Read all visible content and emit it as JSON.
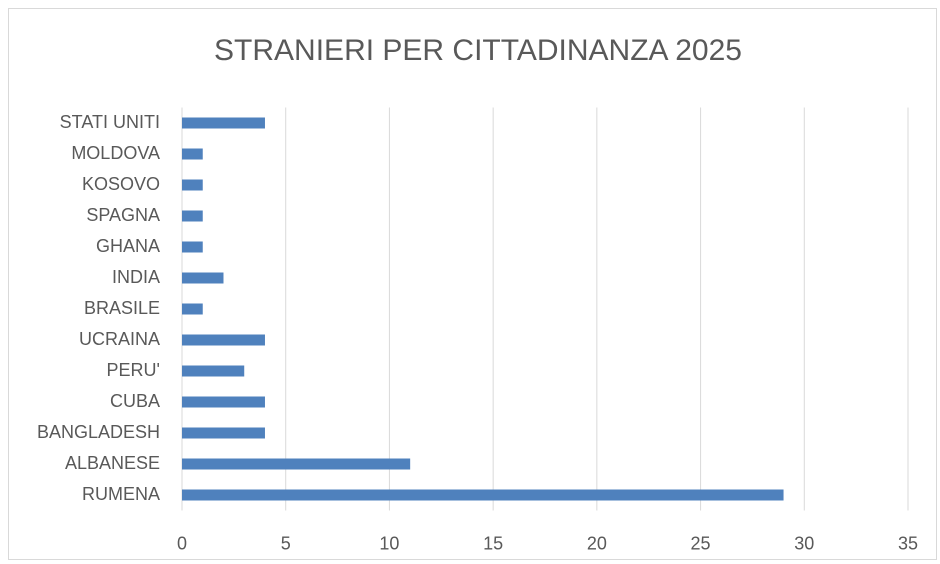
{
  "chart_data": {
    "type": "hbar",
    "title": "STRANIERI PER CITTADINANZA 2025",
    "categories": [
      "RUMENA",
      "ALBANESE",
      "BANGLADESH",
      "CUBA",
      "PERU'",
      "UCRAINA",
      "BRASILE",
      "INDIA",
      "GHANA",
      "SPAGNA",
      "KOSOVO",
      "MOLDOVA",
      "STATI UNITI"
    ],
    "values": [
      29,
      11,
      4,
      4,
      3,
      4,
      1,
      2,
      1,
      1,
      1,
      1,
      4
    ],
    "color": "#4f81bd",
    "xlim": [
      0,
      35
    ],
    "xticks": [
      0,
      5,
      10,
      15,
      20,
      25,
      30,
      35
    ],
    "grid": true
  }
}
